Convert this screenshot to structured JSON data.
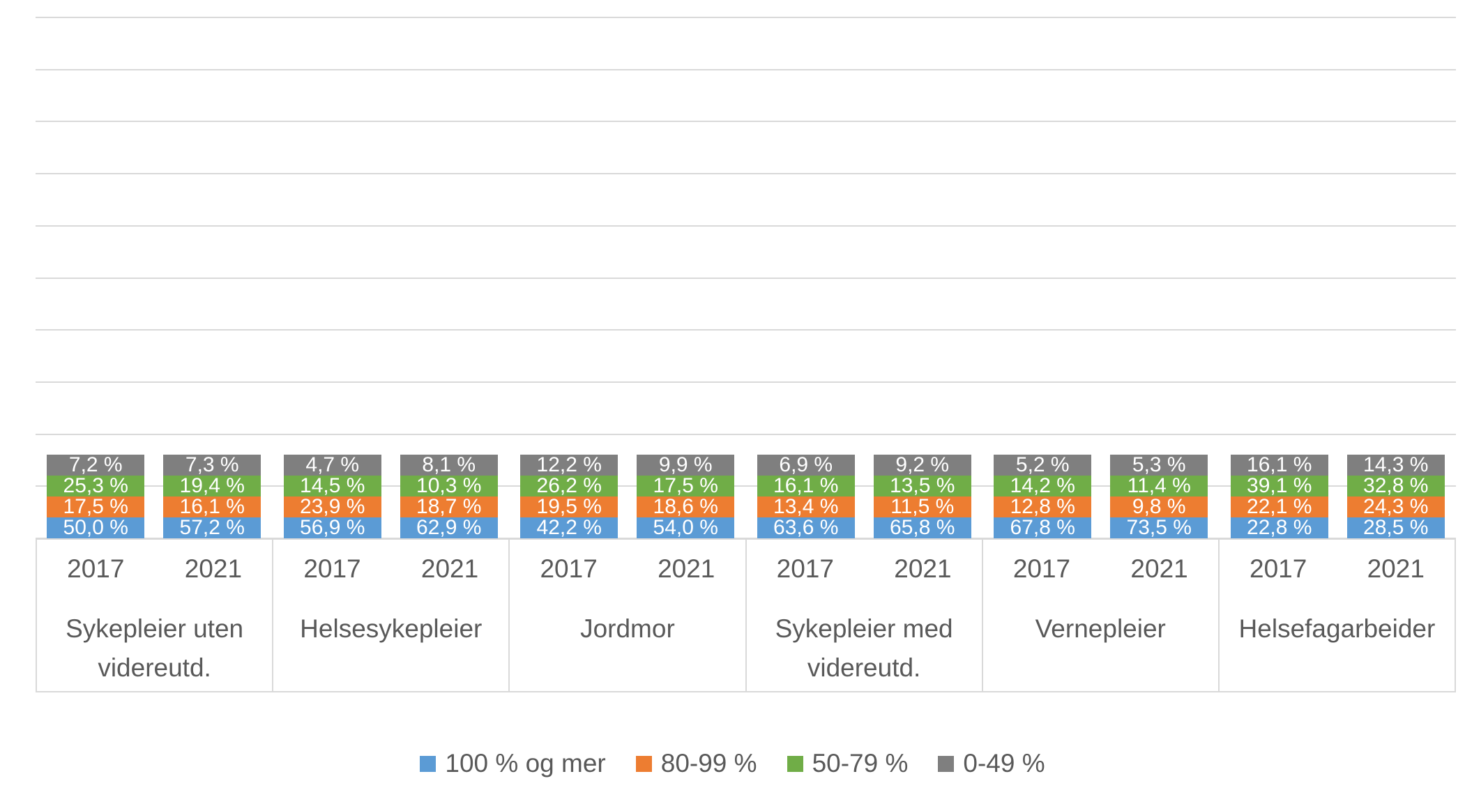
{
  "chart_data": {
    "type": "bar",
    "variant": "100% stacked column",
    "title": "",
    "xlabel": "",
    "ylabel": "",
    "ylim": [
      0,
      100
    ],
    "grid": "horizontal lines every 10%, no y-axis tick labels",
    "legend_position": "bottom center",
    "value_label_format": "one decimal, comma separator, suffix ' %'",
    "stack_order_bottom_to_top": [
      "100 % og mer",
      "80-99 %",
      "50-79 %",
      "0-49 %"
    ],
    "series_colors": {
      "100 % og mer": "#5B9BD5",
      "80-99 %": "#ED7D31",
      "50-79 %": "#70AD47",
      "0-49 %": "#7F7F7F"
    },
    "groups": [
      {
        "label": "Sykepleier uten videreutd.",
        "bars": [
          {
            "year": "2017",
            "values": [
              50.0,
              17.5,
              25.3,
              7.2
            ]
          },
          {
            "year": "2021",
            "values": [
              57.2,
              16.1,
              19.4,
              7.3
            ]
          }
        ]
      },
      {
        "label": "Helsesykepleier",
        "bars": [
          {
            "year": "2017",
            "values": [
              56.9,
              23.9,
              14.5,
              4.7
            ]
          },
          {
            "year": "2021",
            "values": [
              62.9,
              18.7,
              10.3,
              8.1
            ]
          }
        ]
      },
      {
        "label": "Jordmor",
        "bars": [
          {
            "year": "2017",
            "values": [
              42.2,
              19.5,
              26.2,
              12.2
            ]
          },
          {
            "year": "2021",
            "values": [
              54.0,
              18.6,
              17.5,
              9.9
            ]
          }
        ]
      },
      {
        "label": "Sykepleier med videreutd.",
        "bars": [
          {
            "year": "2017",
            "values": [
              63.6,
              13.4,
              16.1,
              6.9
            ]
          },
          {
            "year": "2021",
            "values": [
              65.8,
              11.5,
              13.5,
              9.2
            ]
          }
        ]
      },
      {
        "label": "Vernepleier",
        "bars": [
          {
            "year": "2017",
            "values": [
              67.8,
              12.8,
              14.2,
              5.2
            ]
          },
          {
            "year": "2021",
            "values": [
              73.5,
              9.8,
              11.4,
              5.3
            ]
          }
        ]
      },
      {
        "label": "Helsefagarbeider",
        "bars": [
          {
            "year": "2017",
            "values": [
              22.8,
              22.1,
              39.1,
              16.1
            ]
          },
          {
            "year": "2021",
            "values": [
              28.5,
              24.3,
              32.8,
              14.3
            ]
          }
        ]
      }
    ]
  },
  "legend": {
    "items": [
      {
        "label": "100 % og mer",
        "color": "#5B9BD5"
      },
      {
        "label": "80-99 %",
        "color": "#ED7D31"
      },
      {
        "label": "50-79 %",
        "color": "#70AD47"
      },
      {
        "label": "0-49 %",
        "color": "#7F7F7F"
      }
    ]
  },
  "colors": {
    "background": "#FFFFFF",
    "gridline": "#D9D9D9",
    "axis_border": "#D9D9D9",
    "axis_text": "#595959",
    "bar_label_text": "#FFFFFF"
  }
}
